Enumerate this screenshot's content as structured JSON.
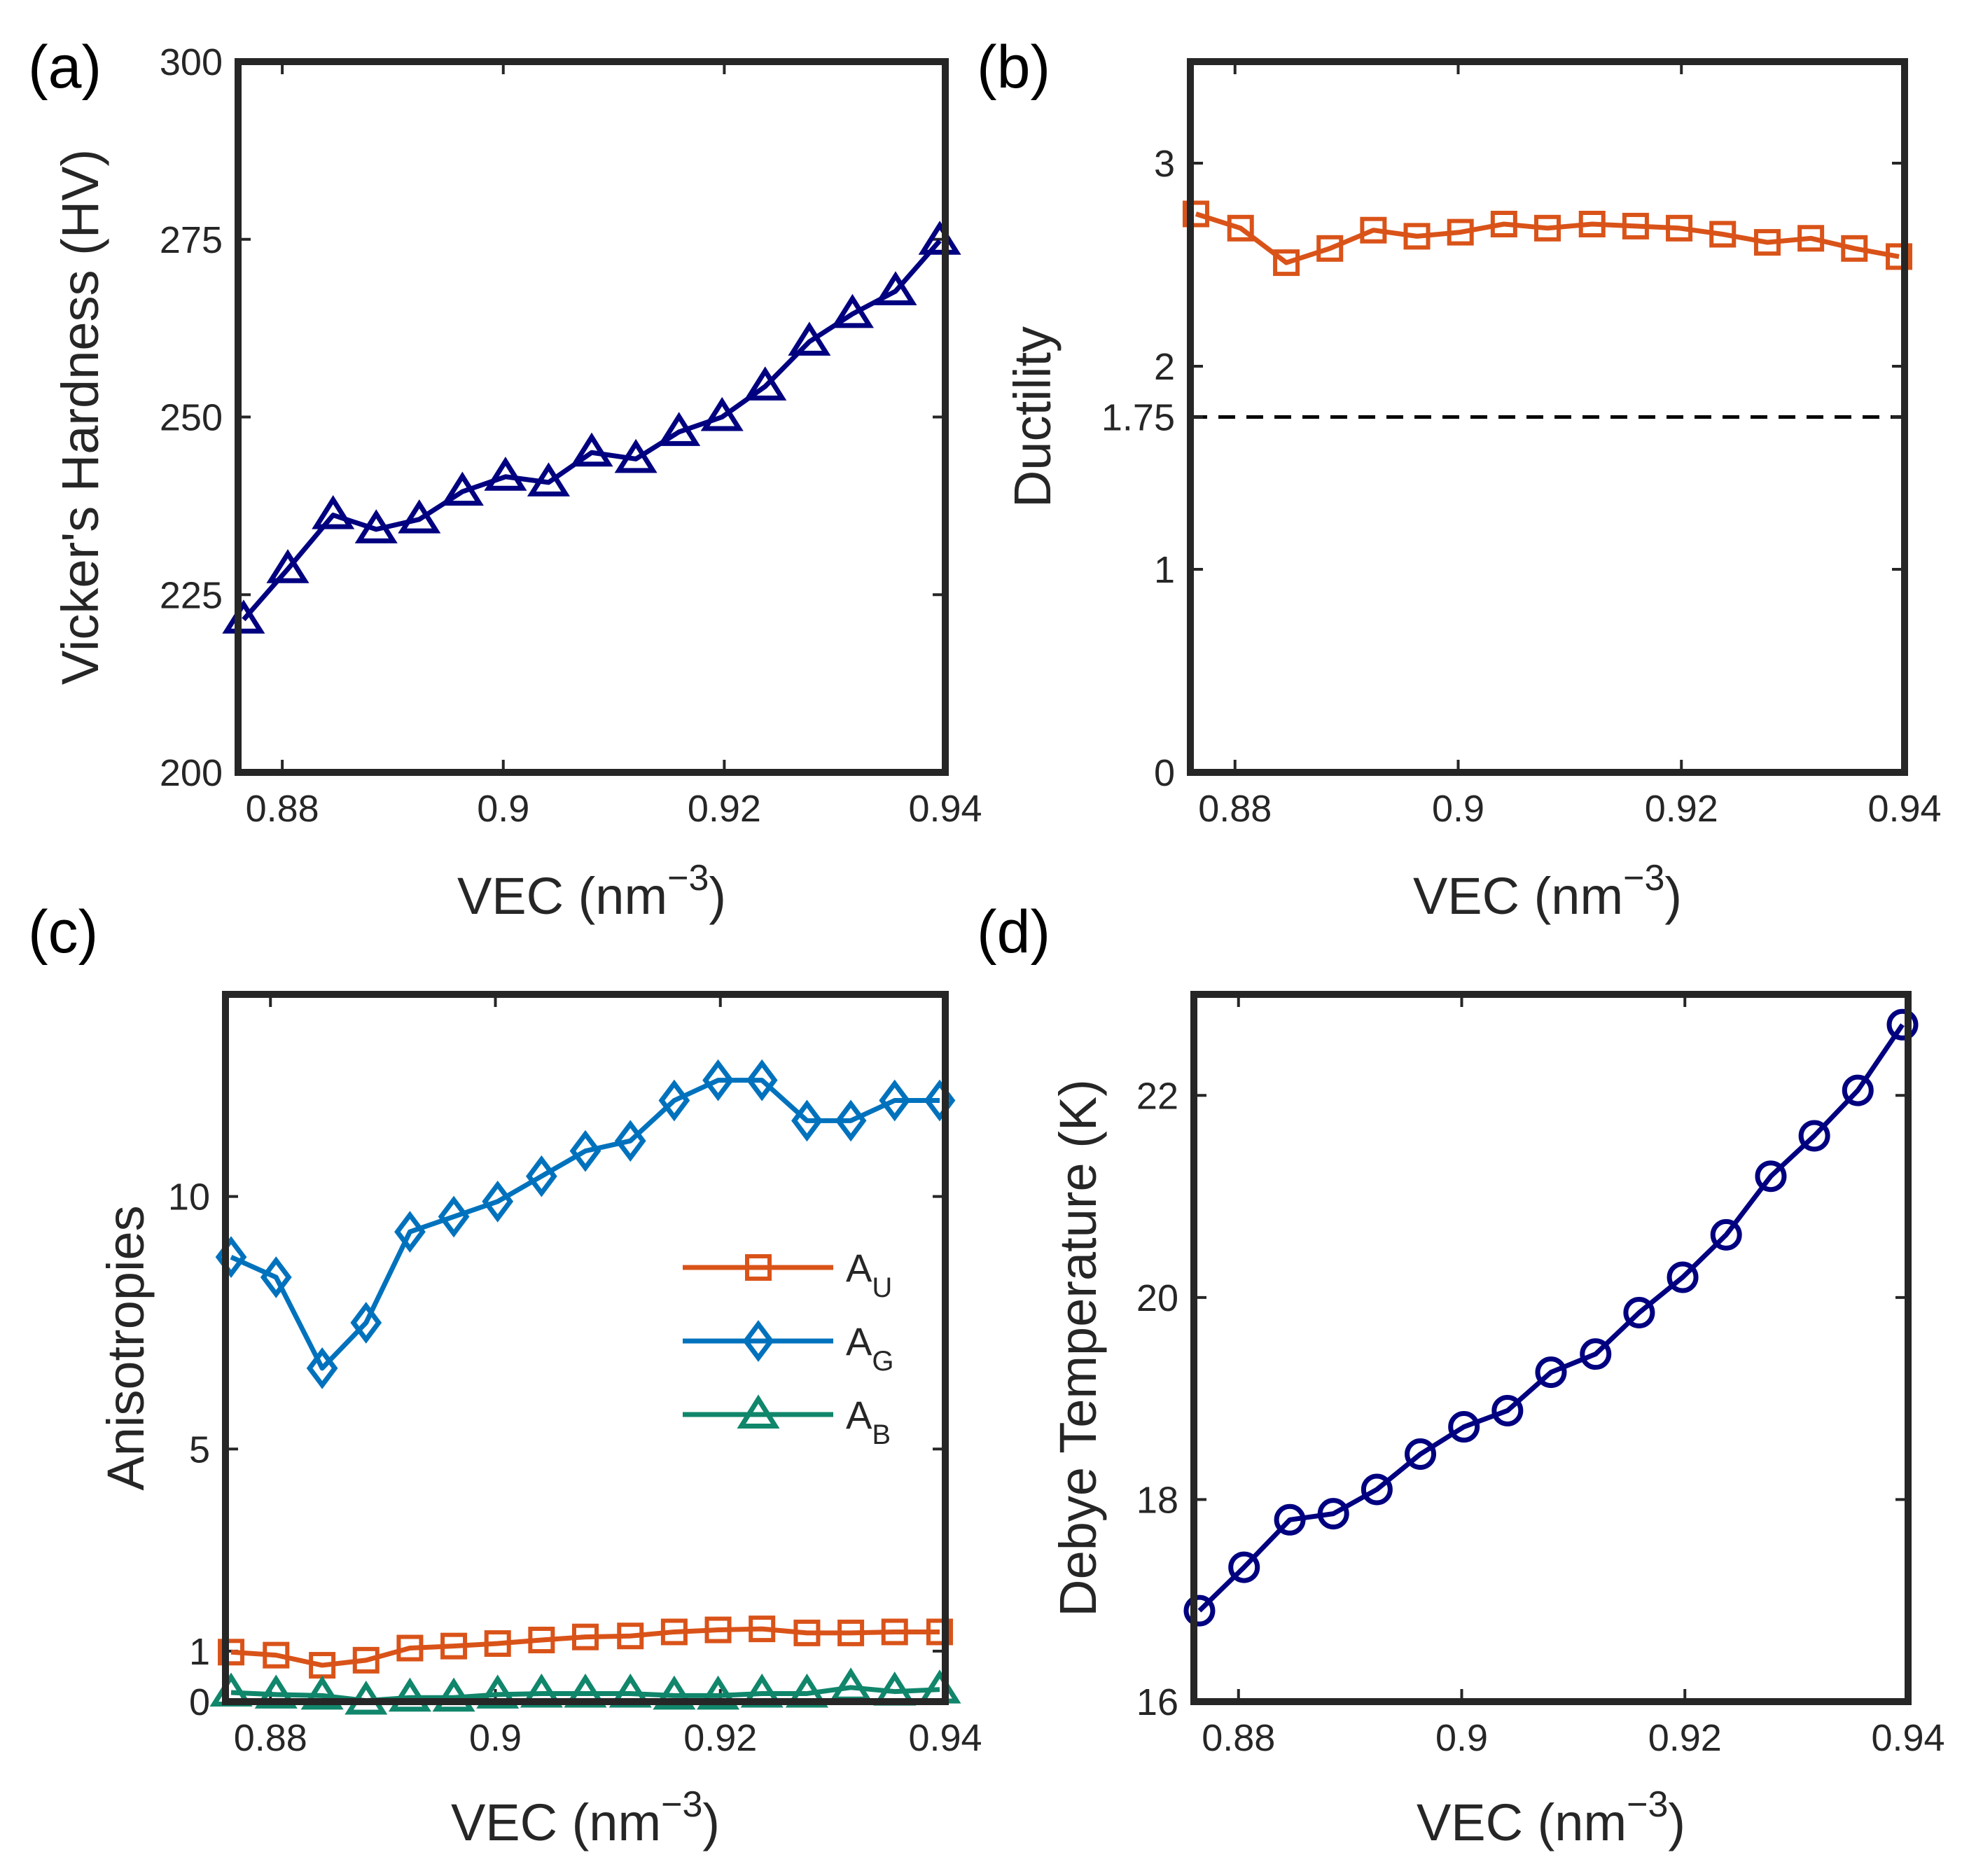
{
  "figure": {
    "colors": {
      "navy": "#000080",
      "orange": "#D95319",
      "blue": "#0072BD",
      "green": "#10866B",
      "axis": "#262626",
      "dashed": "#000000"
    }
  },
  "chart_data": [
    {
      "panel": "(a)",
      "type": "line",
      "xlabel": "VEC (nm",
      "xlabel_sup": "−3",
      "xlabel_end": ")",
      "ylabel": "Vicker's Hardness (HV)",
      "xlim": [
        0.876,
        0.94
      ],
      "ylim": [
        200,
        300
      ],
      "xticks": [
        0.88,
        0.9,
        0.92,
        0.94
      ],
      "xtick_labels": [
        "0.88",
        "0.9",
        "0.92",
        "0.94"
      ],
      "yticks": [
        200,
        225,
        250,
        275,
        300
      ],
      "ytick_labels": [
        "200",
        "225",
        "250",
        "275",
        "300"
      ],
      "series": [
        {
          "name": "Vicker's Hardness",
          "marker": "triangle",
          "color": "#000080",
          "x": [
            0.8765,
            0.8805,
            0.8846,
            0.8885,
            0.8924,
            0.8963,
            0.9002,
            0.9041,
            0.908,
            0.912,
            0.9159,
            0.9198,
            0.9237,
            0.9277,
            0.9316,
            0.9355,
            0.9395
          ],
          "y": [
            221.5,
            228.6,
            236.2,
            234.2,
            235.6,
            239.5,
            241.6,
            240.8,
            245.0,
            244.1,
            247.9,
            250.0,
            254.3,
            260.6,
            264.5,
            267.7,
            274.8
          ]
        }
      ]
    },
    {
      "panel": "(b)",
      "type": "line",
      "xlabel": "VEC (nm",
      "xlabel_sup": "−3",
      "xlabel_end": ")",
      "ylabel": "Ductility",
      "xlim": [
        0.876,
        0.94
      ],
      "ylim": [
        0,
        3.5
      ],
      "xticks": [
        0.88,
        0.9,
        0.92,
        0.94
      ],
      "xtick_labels": [
        "0.88",
        "0.9",
        "0.92",
        "0.94"
      ],
      "yticks": [
        0,
        1,
        1.75,
        2,
        3
      ],
      "ytick_labels": [
        "0",
        "1",
        "1.75",
        "2",
        "3"
      ],
      "reference_line": {
        "y": 1.75,
        "style": "dashed"
      },
      "series": [
        {
          "name": "Ductility",
          "marker": "square",
          "color": "#D95319",
          "x": [
            0.8765,
            0.8805,
            0.8846,
            0.8885,
            0.8924,
            0.8963,
            0.9002,
            0.9041,
            0.908,
            0.912,
            0.9159,
            0.9198,
            0.9237,
            0.9277,
            0.9316,
            0.9355,
            0.9395
          ],
          "y": [
            2.75,
            2.68,
            2.51,
            2.58,
            2.67,
            2.64,
            2.66,
            2.7,
            2.68,
            2.7,
            2.69,
            2.68,
            2.65,
            2.61,
            2.63,
            2.58,
            2.54
          ]
        }
      ]
    },
    {
      "panel": "(c)",
      "type": "line",
      "xlabel": "VEC (nm",
      "xlabel_sup": "−3",
      "xlabel_end": ")",
      "ylabel": "Anisotropies",
      "xlim": [
        0.876,
        0.94
      ],
      "ylim": [
        0,
        14
      ],
      "xticks": [
        0.88,
        0.9,
        0.92,
        0.94
      ],
      "xtick_labels": [
        "0.88",
        "0.9",
        "0.92",
        "0.94"
      ],
      "yticks": [
        0,
        1,
        5,
        10
      ],
      "ytick_labels": [
        "0",
        "1",
        "5",
        "10"
      ],
      "legend_position": "center-right",
      "series": [
        {
          "name": "A",
          "subscript": "U",
          "marker": "square",
          "color": "#D95319",
          "x": [
            0.8765,
            0.8805,
            0.8846,
            0.8885,
            0.8924,
            0.8963,
            0.9002,
            0.9041,
            0.908,
            0.912,
            0.9159,
            0.9198,
            0.9237,
            0.9277,
            0.9316,
            0.9355,
            0.9395
          ],
          "y": [
            0.98,
            0.92,
            0.72,
            0.82,
            1.06,
            1.1,
            1.15,
            1.22,
            1.28,
            1.3,
            1.38,
            1.42,
            1.44,
            1.36,
            1.36,
            1.38,
            1.38
          ]
        },
        {
          "name": "A",
          "subscript": "G",
          "marker": "diamond",
          "color": "#0072BD",
          "x": [
            0.8765,
            0.8805,
            0.8846,
            0.8885,
            0.8924,
            0.8963,
            0.9002,
            0.9041,
            0.908,
            0.912,
            0.9159,
            0.9198,
            0.9237,
            0.9277,
            0.9316,
            0.9355,
            0.9395
          ],
          "y": [
            8.8,
            8.4,
            6.6,
            7.5,
            9.3,
            9.6,
            9.9,
            10.4,
            10.9,
            11.1,
            11.9,
            12.3,
            12.3,
            11.5,
            11.5,
            11.9,
            11.9
          ]
        },
        {
          "name": "A",
          "subscript": "B",
          "marker": "triangle",
          "color": "#10866B",
          "x": [
            0.8765,
            0.8805,
            0.8846,
            0.8885,
            0.8924,
            0.8963,
            0.9002,
            0.9041,
            0.908,
            0.912,
            0.9159,
            0.9198,
            0.9237,
            0.9277,
            0.9316,
            0.9355,
            0.9395
          ],
          "y": [
            0.18,
            0.14,
            0.12,
            0.02,
            0.08,
            0.08,
            0.14,
            0.16,
            0.16,
            0.16,
            0.12,
            0.12,
            0.16,
            0.16,
            0.28,
            0.2,
            0.24
          ]
        }
      ]
    },
    {
      "panel": "(d)",
      "type": "line",
      "xlabel": "VEC (nm",
      "xlabel_sup": "−3",
      "xlabel_end": ")",
      "ylabel": "Debye Temperature (K)",
      "xlim": [
        0.876,
        0.94
      ],
      "ylim": [
        16,
        23
      ],
      "xticks": [
        0.88,
        0.9,
        0.92,
        0.94
      ],
      "xtick_labels": [
        "0.88",
        "0.9",
        "0.92",
        "0.94"
      ],
      "yticks": [
        16,
        18,
        20,
        22
      ],
      "ytick_labels": [
        "16",
        "18",
        "20",
        "22"
      ],
      "series": [
        {
          "name": "Debye Temperature",
          "marker": "circle",
          "color": "#000080",
          "x": [
            0.8765,
            0.8805,
            0.8846,
            0.8885,
            0.8924,
            0.8963,
            0.9002,
            0.9041,
            0.908,
            0.912,
            0.9159,
            0.9198,
            0.9237,
            0.9277,
            0.9316,
            0.9355,
            0.9395
          ],
          "y": [
            16.9,
            17.33,
            17.8,
            17.86,
            18.1,
            18.45,
            18.72,
            18.88,
            19.26,
            19.44,
            19.85,
            20.2,
            20.62,
            21.2,
            21.6,
            22.05,
            22.7
          ]
        }
      ]
    }
  ]
}
